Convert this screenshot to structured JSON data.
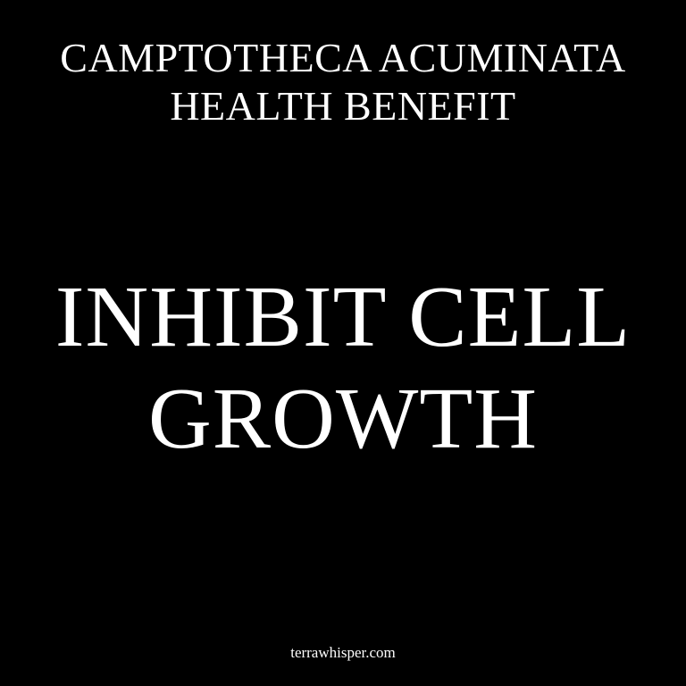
{
  "header": {
    "lines": [
      "CAMPTOTHECA ACUMINATA",
      "HEALTH BENEFIT"
    ]
  },
  "main": {
    "lines": [
      "INHIBIT CELL",
      "GROWTH"
    ]
  },
  "footer": {
    "site": "terrawhisper.com"
  },
  "colors": {
    "background": "#000000",
    "text": "#ffffff"
  }
}
